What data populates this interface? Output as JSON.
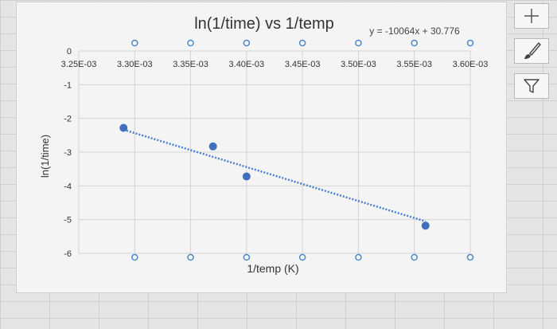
{
  "chart_data": {
    "type": "scatter",
    "title": "ln(1/time) vs 1/temp",
    "xlabel": "1/temp (K)",
    "ylabel": "ln(1/time)",
    "trendline_equation": "y = -10064x + 30.776",
    "trendline": {
      "slope": -10064,
      "intercept": 30.776,
      "x_from": 0.00329,
      "x_to": 0.00356
    },
    "x_tick_labels": [
      "3.25E-03",
      "3.30E-03",
      "3.35E-03",
      "3.40E-03",
      "3.45E-03",
      "3.50E-03",
      "3.55E-03",
      "3.60E-03"
    ],
    "x_ticks": [
      0.00325,
      0.0033,
      0.00335,
      0.0034,
      0.00345,
      0.0035,
      0.00355,
      0.0036
    ],
    "y_tick_labels": [
      "0",
      "-1",
      "-2",
      "-3",
      "-4",
      "-5",
      "-6"
    ],
    "y_ticks": [
      0,
      -1,
      -2,
      -3,
      -4,
      -5,
      -6
    ],
    "xlim": [
      0.00325,
      0.0036
    ],
    "ylim": [
      -6,
      0
    ],
    "grid": true,
    "legend": "none",
    "series": [
      {
        "x": [
          0.00329,
          0.00337,
          0.0034,
          0.00356
        ],
        "y": [
          -2.28,
          -2.83,
          -3.72,
          -5.18
        ]
      }
    ],
    "colors": {
      "marker": "#3f6fbd",
      "trendline": "#4a7fd0",
      "grid": "#d4d4d4",
      "handle_stroke": "#4a86c8"
    }
  },
  "toolbar": {
    "buttons": [
      "add-element",
      "style-brush",
      "filter"
    ]
  }
}
